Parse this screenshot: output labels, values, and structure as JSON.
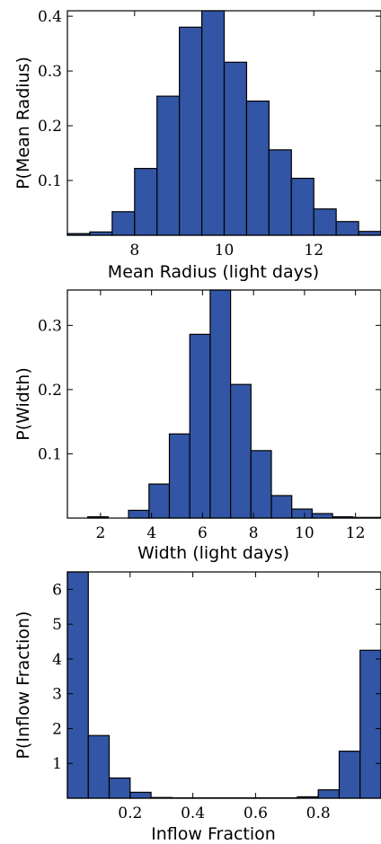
{
  "bar_color": "#3355a5",
  "chart_data": [
    {
      "type": "bar",
      "xlabel": "Mean Radius (light days)",
      "ylabel": "P(Mean Radius)",
      "xlim": [
        6.5,
        13.5
      ],
      "ylim": [
        0,
        0.41
      ],
      "xticks": [
        8,
        10,
        12
      ],
      "yticks": [
        0.1,
        0.2,
        0.3,
        0.4
      ],
      "ytick_labels": [
        "0.1",
        "0.2",
        "0.3",
        "0.4"
      ],
      "bin_edges": [
        6.5,
        7.0,
        7.5,
        8.0,
        8.5,
        9.0,
        9.5,
        10.0,
        10.5,
        11.0,
        11.5,
        12.0,
        12.5,
        13.0,
        13.5
      ],
      "values": [
        0.003,
        0.006,
        0.043,
        0.122,
        0.254,
        0.38,
        0.41,
        0.316,
        0.245,
        0.156,
        0.104,
        0.048,
        0.025,
        0.007
      ]
    },
    {
      "type": "bar",
      "xlabel": "Width (light days)",
      "ylabel": "P(Width)",
      "xlim": [
        0.7,
        13.0
      ],
      "ylim": [
        0,
        0.355
      ],
      "xticks": [
        2,
        4,
        6,
        8,
        10,
        12
      ],
      "yticks": [
        0.1,
        0.2,
        0.3
      ],
      "ytick_labels": [
        "0.1",
        "0.2",
        "0.3"
      ],
      "bin_edges": [
        0.7,
        1.5,
        2.3,
        3.1,
        3.9,
        4.7,
        5.5,
        6.3,
        7.1,
        7.9,
        8.7,
        9.5,
        10.3,
        11.1,
        11.9,
        13.0
      ],
      "values": [
        0.0,
        0.002,
        0.0,
        0.012,
        0.053,
        0.131,
        0.286,
        0.355,
        0.208,
        0.105,
        0.035,
        0.014,
        0.007,
        0.002,
        0.001
      ]
    },
    {
      "type": "bar",
      "xlabel": "Inflow Fraction",
      "ylabel": "P(Inflow Fraction)",
      "xlim": [
        0.0,
        1.0
      ],
      "ylim": [
        0,
        6.5
      ],
      "xticks": [
        0.2,
        0.4,
        0.6,
        0.8
      ],
      "xtick_labels": [
        "0.2",
        "0.4",
        "0.6",
        "0.8"
      ],
      "yticks": [
        1,
        2,
        3,
        4,
        5,
        6
      ],
      "ytick_labels": [
        "1",
        "2",
        "3",
        "4",
        "5",
        "6"
      ],
      "bin_edges": [
        0.0,
        0.0667,
        0.1333,
        0.2,
        0.2667,
        0.3333,
        0.4,
        0.4667,
        0.5333,
        0.6,
        0.6667,
        0.7333,
        0.8,
        0.8667,
        0.9333,
        1.0
      ],
      "values": [
        6.5,
        1.8,
        0.58,
        0.17,
        0.02,
        0.01,
        0.01,
        0.01,
        0.01,
        0.01,
        0.01,
        0.04,
        0.24,
        1.35,
        4.25
      ]
    }
  ]
}
